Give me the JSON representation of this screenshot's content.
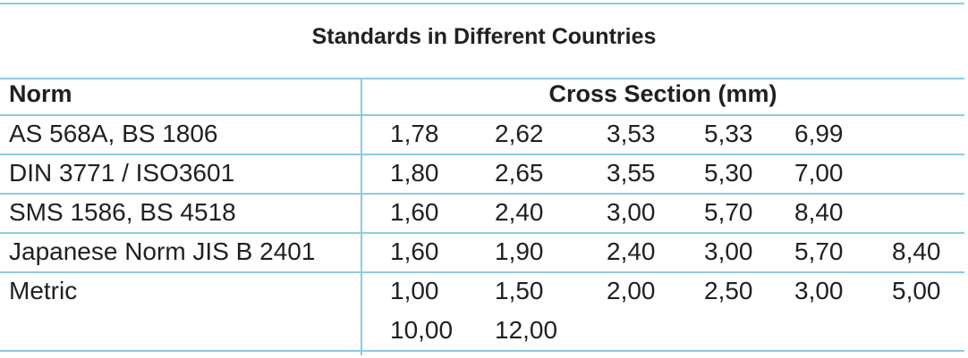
{
  "title": "Standards in Different Countries",
  "table": {
    "header": [
      "Norm",
      "Cross Section (mm)"
    ],
    "rows": [
      {
        "norm": "AS 568A, BS 1806",
        "values": [
          "1,78",
          "2,62",
          "3,53",
          "5,33",
          "6,99"
        ]
      },
      {
        "norm": "DIN 3771 / ISO3601",
        "values": [
          "1,80",
          "2,65",
          "3,55",
          "5,30",
          "7,00"
        ]
      },
      {
        "norm": "SMS 1586, BS 4518",
        "values": [
          "1,60",
          "2,40",
          "3,00",
          "5,70",
          "8,40"
        ]
      },
      {
        "norm": "Japanese Norm JIS B 2401",
        "values": [
          "1,60",
          "1,90",
          "2,40",
          "3,00",
          "5,70",
          "8,40"
        ]
      },
      {
        "norm": "Metric",
        "values": [
          "1,00",
          "1,50",
          "2,00",
          "2,50",
          "3,00",
          "5,00",
          "10,00",
          "12,00"
        ]
      }
    ]
  }
}
